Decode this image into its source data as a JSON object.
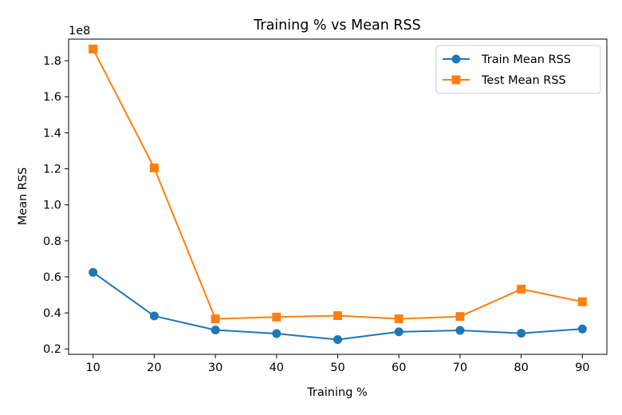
{
  "chart_data": {
    "type": "line",
    "title": "Training % vs Mean RSS",
    "xlabel": "Training %",
    "ylabel": "Mean RSS",
    "y_offset_label": "1e8",
    "x": [
      10,
      20,
      30,
      40,
      50,
      60,
      70,
      80,
      90
    ],
    "xlim": [
      6,
      94
    ],
    "ylim": [
      0.17,
      1.92
    ],
    "x_ticks": [
      10,
      20,
      30,
      40,
      50,
      60,
      70,
      80,
      90
    ],
    "y_ticks": [
      0.2,
      0.4,
      0.6,
      0.8,
      1.0,
      1.2,
      1.4,
      1.6,
      1.8
    ],
    "y_tick_labels": [
      "0.2",
      "0.4",
      "0.6",
      "0.8",
      "1.0",
      "1.2",
      "1.4",
      "1.6",
      "1.8"
    ],
    "grid": false,
    "legend_position": "top-right",
    "series": [
      {
        "name": "Train Mean RSS",
        "marker": "circle",
        "color": "#1f77b4",
        "values": [
          0.625,
          0.383,
          0.305,
          0.285,
          0.252,
          0.295,
          0.303,
          0.287,
          0.311
        ]
      },
      {
        "name": "Test Mean RSS",
        "marker": "square",
        "color": "#ff7f0e",
        "values": [
          1.865,
          1.205,
          0.367,
          0.377,
          0.385,
          0.367,
          0.38,
          0.532,
          0.462
        ]
      }
    ]
  }
}
